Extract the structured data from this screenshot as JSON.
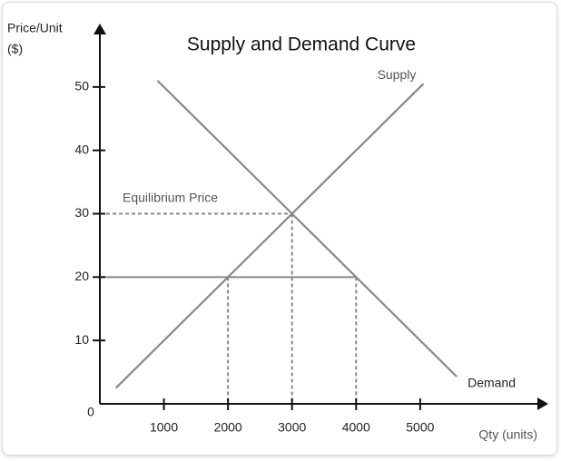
{
  "chart_data": {
    "type": "line",
    "title": "Supply and Demand Curve",
    "y_label": [
      "Price/Unit",
      "($)"
    ],
    "x_label": "Qty (units)",
    "xlim": [
      0,
      7000
    ],
    "ylim": [
      0,
      60
    ],
    "xticks": [
      0,
      1000,
      2000,
      3000,
      4000,
      5000
    ],
    "yticks": [
      10,
      20,
      30,
      40,
      50
    ],
    "series": [
      {
        "name": "Supply",
        "color": "#888888",
        "x": [
          250,
          5050
        ],
        "values": [
          2.5,
          50.5
        ]
      },
      {
        "name": "Demand",
        "color": "#888888",
        "x": [
          900,
          5570
        ],
        "values": [
          51,
          4.3
        ]
      }
    ],
    "h_guides": [
      {
        "y": 30,
        "x_end": 3000,
        "dashed": true
      },
      {
        "y": 20,
        "x_end": 4000,
        "dashed": false
      }
    ],
    "v_guides": [
      {
        "x": 2000,
        "y_top": 20
      },
      {
        "x": 3000,
        "y_top": 30
      },
      {
        "x": 4000,
        "y_top": 20
      }
    ],
    "annotation": "Equilibrium Price"
  }
}
